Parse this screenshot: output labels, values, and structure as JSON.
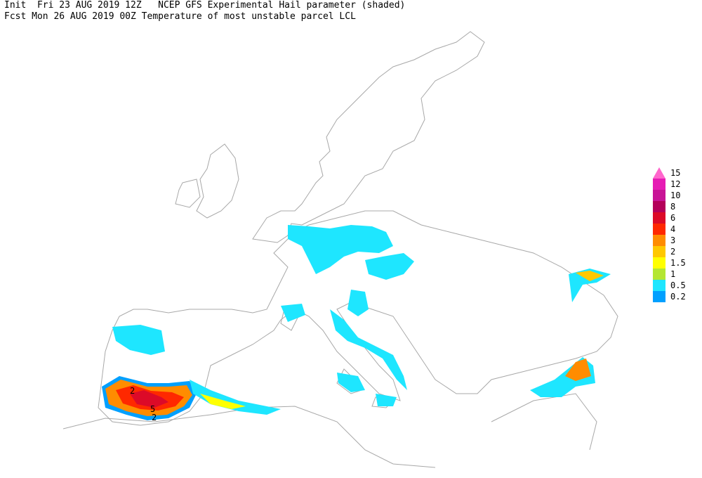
{
  "header": {
    "line1": "Init  Fri 23 AUG 2019 12Z   NCEP GFS Experimental Hail parameter (shaded)",
    "line2": "Fcst Mon 26 AUG 2019 00Z Temperature of most unstable parcel LCL"
  },
  "legend": [
    {
      "value": 15,
      "color": "#ff66cc"
    },
    {
      "value": 12,
      "color": "#e61cb4"
    },
    {
      "value": 10,
      "color": "#c81496"
    },
    {
      "value": 8,
      "color": "#b4005a"
    },
    {
      "value": 6,
      "color": "#dc0a28"
    },
    {
      "value": 4,
      "color": "#ff2800"
    },
    {
      "value": 3,
      "color": "#ff8c00"
    },
    {
      "value": 2,
      "color": "#ffc800"
    },
    {
      "value": 1.5,
      "color": "#ffff00"
    },
    {
      "value": 1,
      "color": "#b4e632"
    },
    {
      "value": 0.5,
      "color": "#1ee6ff"
    },
    {
      "value": 0.2,
      "color": "#00a0ff"
    }
  ],
  "contour_labels": [
    "2",
    "5",
    "2"
  ]
}
